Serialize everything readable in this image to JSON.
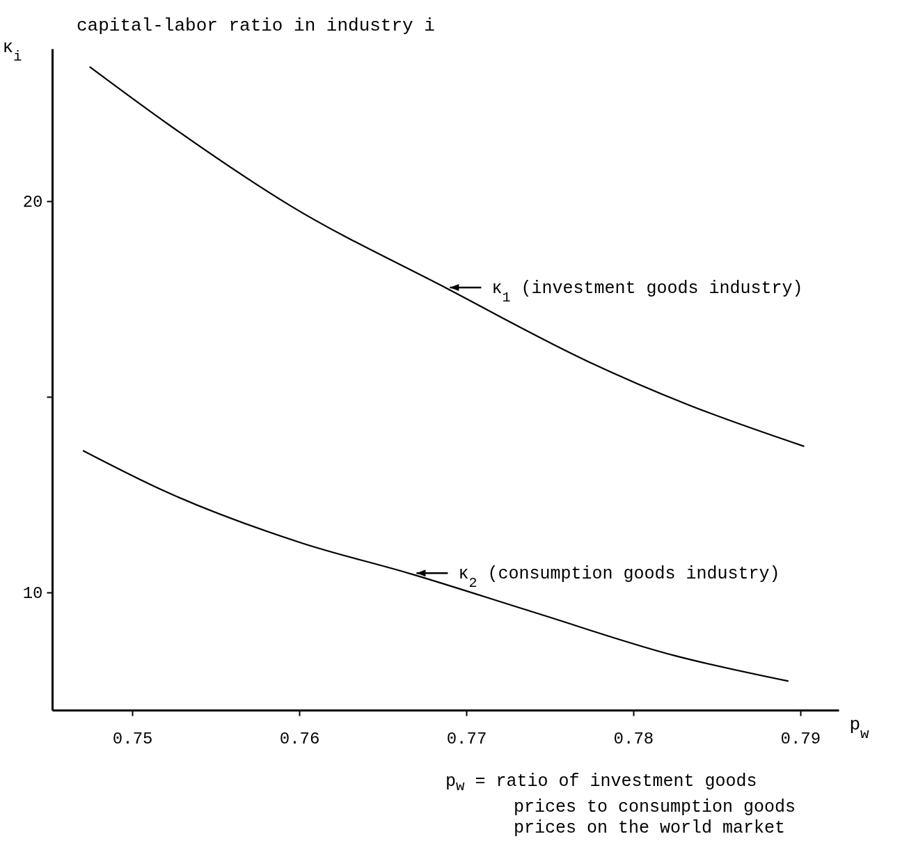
{
  "chart_data": {
    "type": "line",
    "title": "capital-labor ratio in industry i",
    "ylabel": "κ$_{i}$",
    "xlabel": "p$_{w}$",
    "xlim": [
      0.7452,
      0.7923
    ],
    "ylim": [
      7,
      23.9
    ],
    "xticks": [
      0.75,
      0.76,
      0.77,
      0.78,
      0.79
    ],
    "yticks": [
      10,
      {
        "value": 15,
        "label": null
      },
      20
    ],
    "grid": false,
    "series": [
      {
        "color": "#000000",
        "x": [
          0.74744,
          0.75228,
          0.75942,
          0.76895,
          0.77728,
          0.78324,
          0.79023
        ],
        "values": [
          23.44,
          21.93,
          19.9,
          17.75,
          15.91,
          14.81,
          13.74
        ]
      },
      {
        "color": "#000000",
        "x": [
          0.74704,
          0.7518,
          0.76014,
          0.76669,
          0.77412,
          0.7825,
          0.78929
        ],
        "values": [
          13.63,
          12.62,
          11.27,
          10.48,
          9.49,
          8.39,
          7.74
        ]
      }
    ],
    "annotations": [
      {
        "text": "κ$_{1}$ (investment goods industry)",
        "x": 0.7686,
        "y": 17.8
      },
      {
        "text": "κ$_{2}$ (consumption goods industry)",
        "x": 0.7666,
        "y": 10.5
      },
      "p$_{w}$ = ratio of investment goods prices to consumption goods prices on the world market"
    ]
  }
}
